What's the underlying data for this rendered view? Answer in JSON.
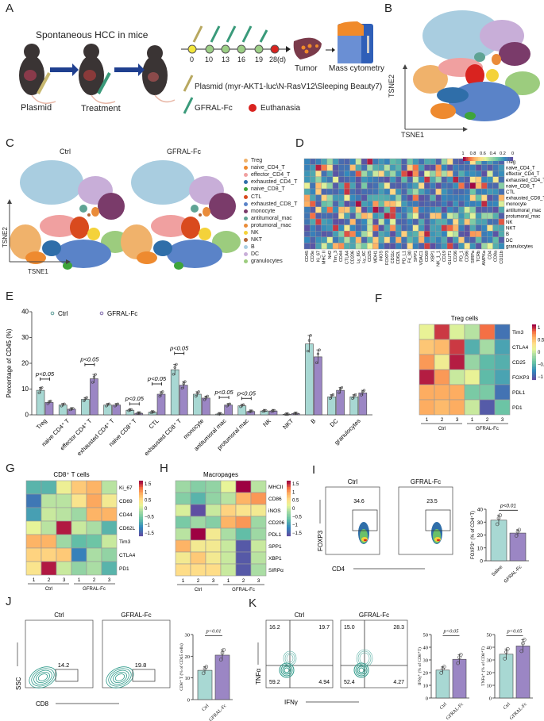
{
  "panels": {
    "A": {
      "label": "A",
      "title": "Spontaneous HCC in mice",
      "steps": [
        "Plasmid",
        "Treatment"
      ],
      "timeline": [
        "0",
        "10",
        "13",
        "16",
        "19",
        "28(d)"
      ],
      "tumor_label": "Tumor",
      "mass_cyto_label": "Mass cytometry",
      "legend_plasmid": "Plasmid (myr-AKT1-luc\\N-RasV12\\Sleeping Beauty7)",
      "legend_gfral": "GFRAL-Fc",
      "legend_euth": "Euthanasia",
      "colors": {
        "day0": "#f2e63b",
        "injection": "#9ccf86",
        "euthanasia": "#d9231f",
        "arrow": "#1f3f8f"
      }
    },
    "B": {
      "label": "B",
      "xlabel": "TSNE1",
      "ylabel": "TSNE2",
      "cluster_labels": [
        "B",
        "DC",
        "monocyte",
        "antitumoral_mac",
        "protumoral_mac",
        "effector_CD4_T",
        "NKT",
        "Treg",
        "CTL",
        "NK",
        "granulocytes",
        "exhausted_CD4_T",
        "exhausted_CD8_T",
        "naive_CD4_T",
        "naive_CD8_T"
      ]
    },
    "C": {
      "label": "C",
      "titles": [
        "Ctrl",
        "GFRAL-Fc"
      ],
      "xlabel": "TSNE1",
      "ylabel": "TSNE2",
      "legend": [
        {
          "name": "Treg",
          "color": "#f0b26b"
        },
        {
          "name": "naive_CD4_T",
          "color": "#ee8a2f"
        },
        {
          "name": "effector_CD4_T",
          "color": "#f0a0a0"
        },
        {
          "name": "exhausted_CD4_T",
          "color": "#2f6ea9"
        },
        {
          "name": "naive_CD8_T",
          "color": "#3ea43a"
        },
        {
          "name": "CTL",
          "color": "#d94a1e"
        },
        {
          "name": "exhausted_CD8_T",
          "color": "#5a83c8"
        },
        {
          "name": "monocyte",
          "color": "#7a3b6a"
        },
        {
          "name": "antitumoral_mac",
          "color": "#5fa394"
        },
        {
          "name": "protumoral_mac",
          "color": "#ea8c3a"
        },
        {
          "name": "NK",
          "color": "#f4d23a"
        },
        {
          "name": "NKT",
          "color": "#b2663b"
        },
        {
          "name": "B",
          "color": "#a9cde0"
        },
        {
          "name": "DC",
          "color": "#c8aed8"
        },
        {
          "name": "granulocytes",
          "color": "#9ccc7e"
        }
      ]
    },
    "D": {
      "label": "D",
      "colorbar_ticks": [
        "1",
        "0.8",
        "0.6",
        "0.4",
        "0.2",
        "0"
      ],
      "rows": [
        "Treg",
        "naive_CD4_T",
        "effector_CD4_T",
        "exhausted_CD4_T",
        "naive_CD8_T",
        "CTL",
        "exhausted_CD8_T",
        "monocyte",
        "antitumoral_mac",
        "protumoral_mac",
        "NK",
        "NKT",
        "B",
        "DC",
        "granulocytes"
      ],
      "cols": [
        "CD45",
        "CD3e",
        "Ki_67",
        "MHC II",
        "Nrf2",
        "Tim_3",
        "CD44",
        "CTLA4",
        "CD206",
        "Ly_6G",
        "Ly_6C",
        "CD25",
        "MDH1",
        "iNOS",
        "FOXP3",
        "CD11c",
        "CD62L",
        "PD_L1",
        "F4_80",
        "SPP1",
        "VDAC1",
        "CD69",
        "XBP1",
        "NK_1_1",
        "CD19",
        "GLUT1",
        "CD36",
        "PD_1",
        "CD86",
        "SIRPa",
        "TCRb",
        "AMPKa",
        "CD4",
        "CD8a",
        "CD11b"
      ]
    },
    "E": {
      "label": "E",
      "legend": [
        {
          "name": "Ctrl",
          "color": "#a8d8d3"
        },
        {
          "name": "GFRAL-Fc",
          "color": "#9b86c4"
        }
      ]
    },
    "F": {
      "label": "F",
      "title": "Treg cells",
      "rows": [
        "Tim3",
        "CTLA4",
        "CD25",
        "FOXP3",
        "PDL1",
        "PD1"
      ],
      "col_ticks": [
        "1",
        "2",
        "3",
        "1",
        "2",
        "3"
      ],
      "groups": [
        "Ctrl",
        "GFRAL-Fc"
      ],
      "colorbar_ticks": [
        "1",
        "0.5",
        "0",
        "−0.5",
        "−1"
      ],
      "values": [
        [
          0.1,
          1.3,
          0.0,
          -0.2,
          1.1,
          -1.4
        ],
        [
          0.6,
          0.7,
          1.3,
          -0.9,
          -0.3,
          -1.0
        ],
        [
          0.9,
          0.2,
          1.4,
          -0.4,
          -0.8,
          -0.9
        ],
        [
          1.4,
          0.9,
          -0.1,
          0.1,
          -0.8,
          -1.0
        ],
        [
          0.8,
          0.8,
          0.8,
          -0.6,
          -0.6,
          -1.4
        ],
        [
          0.8,
          0.7,
          0.8,
          -0.1,
          -1.6,
          -0.7
        ]
      ]
    },
    "G": {
      "label": "G",
      "title": "CD8⁺ T cells",
      "rows": [
        "Ki_67",
        "CD69",
        "CD44",
        "CD62L",
        "Tim3",
        "CTLA4",
        "PD1"
      ],
      "col_ticks": [
        "1",
        "2",
        "3",
        "1",
        "2",
        "3"
      ],
      "groups": [
        "Ctrl",
        "GFRAL-Fc"
      ],
      "colorbar_ticks": [
        "1.5",
        "1",
        "0.5",
        "0",
        "−0.5",
        "−1",
        "−1.5"
      ],
      "values": [
        [
          -0.9,
          -0.9,
          0.3,
          0.8,
          1.0,
          -0.1
        ],
        [
          -1.5,
          -0.1,
          -0.1,
          0.5,
          1.1,
          0.4
        ],
        [
          -1.1,
          0.0,
          -0.1,
          -0.3,
          1.0,
          1.0
        ],
        [
          0.2,
          -0.1,
          1.8,
          0.0,
          -0.2,
          -0.9
        ],
        [
          1.0,
          1.0,
          -0.3,
          -0.8,
          -0.7,
          0.0
        ],
        [
          0.7,
          0.7,
          0.8,
          -1.4,
          -0.2,
          -0.4
        ],
        [
          0.5,
          1.8,
          0.0,
          -0.4,
          -0.2,
          -0.9
        ]
      ]
    },
    "H": {
      "label": "H",
      "title": "Macropages",
      "rows": [
        "MHCII",
        "CD86",
        "iNOS",
        "CD206",
        "PDL1",
        "SPP1",
        "XBP1",
        "SIRPα"
      ],
      "col_ticks": [
        "1",
        "2",
        "3",
        "1",
        "2",
        "3"
      ],
      "groups": [
        "Ctrl",
        "GFRAL-Fc"
      ],
      "colorbar_ticks": [
        "1.5",
        "1",
        "0.5",
        "0",
        "−0.5",
        "−1",
        "−1.5"
      ],
      "values": [
        [
          -0.3,
          -0.5,
          -0.4,
          0.2,
          1.9,
          -0.1
        ],
        [
          -0.5,
          -0.9,
          -0.4,
          -0.1,
          1.0,
          1.2
        ],
        [
          0.1,
          -1.9,
          0.0,
          0.7,
          0.5,
          0.4
        ],
        [
          -0.6,
          -0.3,
          -0.5,
          1.0,
          1.2,
          -0.3
        ],
        [
          -0.1,
          1.9,
          0.4,
          -0.2,
          -0.8,
          -0.3
        ],
        [
          1.0,
          0.4,
          0.4,
          0.0,
          -1.8,
          0.0
        ],
        [
          0.4,
          0.8,
          0.4,
          0.0,
          -1.8,
          -0.1
        ],
        [
          0.6,
          0.6,
          0.6,
          0.0,
          -1.8,
          -0.2
        ]
      ]
    },
    "I": {
      "label": "I",
      "titles": [
        "Ctrl",
        "GFRAL-Fc"
      ],
      "gate_values": [
        "34.6",
        "23.5"
      ],
      "xlabel": "CD4",
      "ylabel": "FOXP3"
    },
    "J": {
      "label": "J",
      "titles": [
        "Ctrl",
        "GFRAL-Fc"
      ],
      "gate_values": [
        "14.2",
        "19.8"
      ],
      "xlabel": "CD8",
      "ylabel": "SSC"
    },
    "K": {
      "label": "K",
      "titles": [
        "Ctrl",
        "GFRAL-Fc"
      ],
      "quadrants": [
        [
          "16.2",
          "19.7",
          "59.2",
          "4.94"
        ],
        [
          "15.0",
          "28.3",
          "52.4",
          "4.27"
        ]
      ],
      "xlabel": "IFNγ",
      "ylabel": "TNFα"
    }
  },
  "chart_data": [
    {
      "id": "E",
      "type": "bar",
      "title": "",
      "xlabel": "",
      "ylabel": "Percentage of CD45 (%)",
      "ylim": [
        0,
        40
      ],
      "yticks": [
        "0",
        "10",
        "20",
        "30",
        "40"
      ],
      "categories": [
        "Treg",
        "naive CD4⁺ T",
        "effector CD4⁺ T",
        "exhausted CD4⁺ T",
        "naive CD8⁺ T",
        "CTL",
        "exhausted CD8⁺ T",
        "monocyte",
        "antitumoral mac",
        "protumoral mac",
        "NK",
        "NKT",
        "B",
        "DC",
        "granulocytes"
      ],
      "series": [
        {
          "name": "Ctrl",
          "color": "#a8d8d3",
          "values": [
            9.5,
            3.8,
            6.0,
            3.8,
            1.8,
            1.0,
            17.5,
            8.0,
            0.3,
            3.5,
            1.5,
            0.2,
            27.5,
            7.0,
            7.0
          ]
        },
        {
          "name": "GFRAL-Fc",
          "color": "#9b86c4",
          "values": [
            4.8,
            2.2,
            14.0,
            3.8,
            0.6,
            8.0,
            11.5,
            6.5,
            3.8,
            1.3,
            1.5,
            0.5,
            22.5,
            9.5,
            8.5
          ]
        }
      ],
      "annotations": [
        {
          "category": "Treg",
          "text": "p<0.05"
        },
        {
          "category": "effector CD4⁺ T",
          "text": "p<0.05"
        },
        {
          "category": "naive CD8⁺ T",
          "text": "p<0.05"
        },
        {
          "category": "CTL",
          "text": "p<0.05"
        },
        {
          "category": "exhausted CD8⁺ T",
          "text": "p<0.05"
        },
        {
          "category": "antitumoral mac",
          "text": "p<0.05"
        },
        {
          "category": "protumoral mac",
          "text": "p<0.05"
        }
      ],
      "legend": "top-left"
    },
    {
      "id": "I-bar",
      "type": "bar",
      "ylabel": "FOXP3⁺ (% of CD4⁺T)",
      "ylim": [
        0,
        40
      ],
      "yticks": [
        "0",
        "10",
        "20",
        "30",
        "40"
      ],
      "categories": [
        "Saline",
        "GFRAL-Fc"
      ],
      "values": [
        31.5,
        21.5
      ],
      "colors": [
        "#a8d8d3",
        "#9b86c4"
      ],
      "annotation": "p<0.01"
    },
    {
      "id": "J-bar",
      "type": "bar",
      "ylabel": "CD8⁺ T (% of CD45 cells)",
      "ylim": [
        0,
        30
      ],
      "yticks": [
        "0",
        "10",
        "20",
        "30"
      ],
      "categories": [
        "Ctrl",
        "GFRAL-Fc"
      ],
      "values": [
        13.5,
        20.5
      ],
      "colors": [
        "#a8d8d3",
        "#9b86c4"
      ],
      "annotation": "p<0.01"
    },
    {
      "id": "K-bar-ifng",
      "type": "bar",
      "ylabel": "IFNγ⁺ (% of CD8⁺T)",
      "ylim": [
        0,
        50
      ],
      "yticks": [
        "0",
        "10",
        "20",
        "30",
        "40",
        "50"
      ],
      "categories": [
        "Ctrl",
        "GFRAL-Fc"
      ],
      "values": [
        22,
        30.5
      ],
      "colors": [
        "#a8d8d3",
        "#9b86c4"
      ],
      "annotation": "p<0.05"
    },
    {
      "id": "K-bar-tnfa",
      "type": "bar",
      "ylabel": "TNFα⁺ (% of CD8⁺T)",
      "ylim": [
        0,
        50
      ],
      "yticks": [
        "0",
        "10",
        "20",
        "30",
        "40",
        "50"
      ],
      "categories": [
        "Ctrl",
        "GFRAL-Fc"
      ],
      "values": [
        34.5,
        41
      ],
      "colors": [
        "#a8d8d3",
        "#9b86c4"
      ],
      "annotation": "p<0.05"
    }
  ]
}
